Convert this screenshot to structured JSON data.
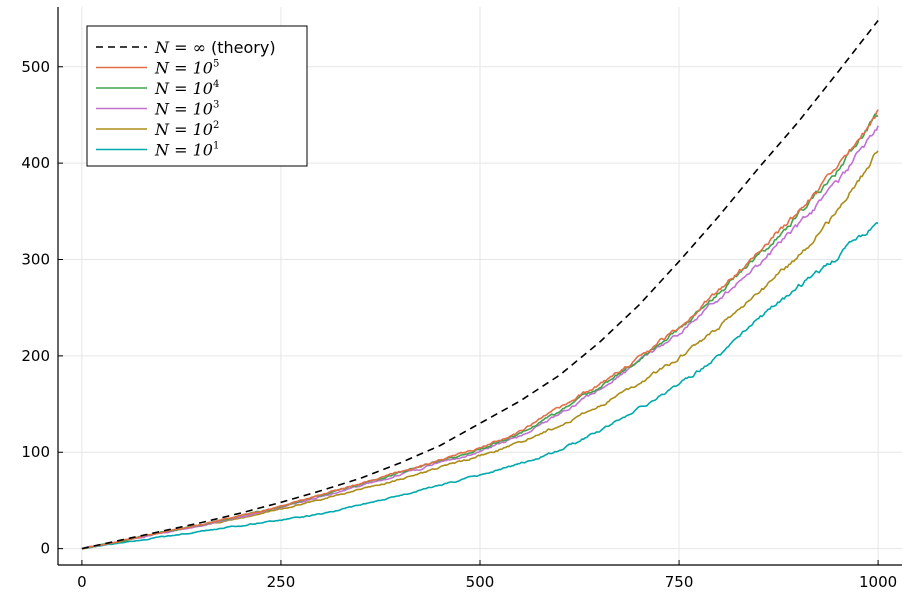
{
  "chart_data": {
    "type": "line",
    "title": "",
    "xlabel": "",
    "ylabel": "",
    "xlim": [
      -30,
      1030
    ],
    "ylim": [
      -17,
      562
    ],
    "grid": true,
    "legend_position": "top-left",
    "x_ticks": [
      {
        "value": 0,
        "label": "0"
      },
      {
        "value": 250,
        "label": "250"
      },
      {
        "value": 500,
        "label": "500"
      },
      {
        "value": 750,
        "label": "750"
      },
      {
        "value": 1000,
        "label": "1000"
      }
    ],
    "y_ticks": [
      {
        "value": 0,
        "label": "0"
      },
      {
        "value": 100,
        "label": "100"
      },
      {
        "value": 200,
        "label": "200"
      },
      {
        "value": 300,
        "label": "300"
      },
      {
        "value": 400,
        "label": "400"
      },
      {
        "value": 500,
        "label": "500"
      }
    ],
    "series": [
      {
        "name": "N = ∞ (theory)",
        "legend": {
          "pre": "N = ∞",
          "suffix": " (theory)",
          "sup": ""
        },
        "color": "#000000",
        "dashed": true,
        "x": [
          0,
          50,
          100,
          150,
          200,
          250,
          300,
          350,
          400,
          450,
          500,
          550,
          600,
          650,
          700,
          750,
          800,
          850,
          900,
          950,
          1000
        ],
        "y": [
          0,
          9,
          18,
          27,
          37,
          48,
          60,
          73,
          89,
          107,
          130,
          153,
          180,
          214,
          253,
          298,
          345,
          395,
          443,
          495,
          548
        ]
      },
      {
        "name": "N = 10^5",
        "legend": {
          "pre": "N = 10",
          "suffix": "",
          "sup": "5"
        },
        "color": "#E26F46",
        "dashed": false,
        "x": [
          0,
          50,
          100,
          150,
          200,
          250,
          300,
          350,
          400,
          450,
          500,
          550,
          600,
          650,
          700,
          750,
          800,
          850,
          900,
          950,
          1000
        ],
        "y": [
          0,
          8,
          17,
          25,
          34,
          44,
          56,
          68,
          80,
          92,
          104,
          122,
          146,
          170,
          198,
          230,
          268,
          308,
          350,
          395,
          455
        ]
      },
      {
        "name": "N = 10^4",
        "legend": {
          "pre": "N = 10",
          "suffix": "",
          "sup": "4"
        },
        "color": "#3DA44D",
        "dashed": false,
        "x": [
          0,
          50,
          100,
          150,
          200,
          250,
          300,
          350,
          400,
          450,
          500,
          550,
          600,
          650,
          700,
          750,
          800,
          850,
          900,
          950,
          1000
        ],
        "y": [
          0,
          8,
          17,
          25,
          34,
          44,
          55,
          67,
          79,
          91,
          103,
          120,
          142,
          168,
          196,
          228,
          266,
          305,
          347,
          392,
          450
        ]
      },
      {
        "name": "N = 10^3",
        "legend": {
          "pre": "N = 10",
          "suffix": "",
          "sup": "3"
        },
        "color": "#C271D2",
        "dashed": false,
        "x": [
          0,
          50,
          100,
          150,
          200,
          250,
          300,
          350,
          400,
          450,
          500,
          550,
          600,
          650,
          700,
          750,
          800,
          850,
          900,
          950,
          1000
        ],
        "y": [
          0,
          8,
          16,
          24,
          33,
          43,
          54,
          65,
          77,
          89,
          101,
          117,
          139,
          165,
          193,
          224,
          258,
          295,
          335,
          380,
          438
        ]
      },
      {
        "name": "N = 10^2",
        "legend": {
          "pre": "N = 10",
          "suffix": "",
          "sup": "2"
        },
        "color": "#AC8D18",
        "dashed": false,
        "x": [
          0,
          50,
          100,
          150,
          200,
          250,
          300,
          350,
          400,
          450,
          500,
          550,
          600,
          650,
          700,
          750,
          800,
          850,
          900,
          950,
          1000
        ],
        "y": [
          0,
          8,
          16,
          24,
          32,
          41,
          51,
          61,
          72,
          84,
          96,
          110,
          128,
          148,
          172,
          198,
          230,
          265,
          303,
          350,
          413
        ]
      },
      {
        "name": "N = 10^1",
        "legend": {
          "pre": "N = 10",
          "suffix": "",
          "sup": "1"
        },
        "color": "#00A9AD",
        "dashed": false,
        "x": [
          0,
          50,
          100,
          150,
          200,
          250,
          300,
          350,
          400,
          450,
          500,
          550,
          600,
          650,
          700,
          750,
          800,
          850,
          900,
          950,
          1000
        ],
        "y": [
          0,
          6,
          12,
          18,
          24,
          30,
          36,
          45,
          55,
          66,
          76,
          88,
          102,
          122,
          145,
          170,
          200,
          238,
          272,
          303,
          341
        ]
      }
    ]
  }
}
